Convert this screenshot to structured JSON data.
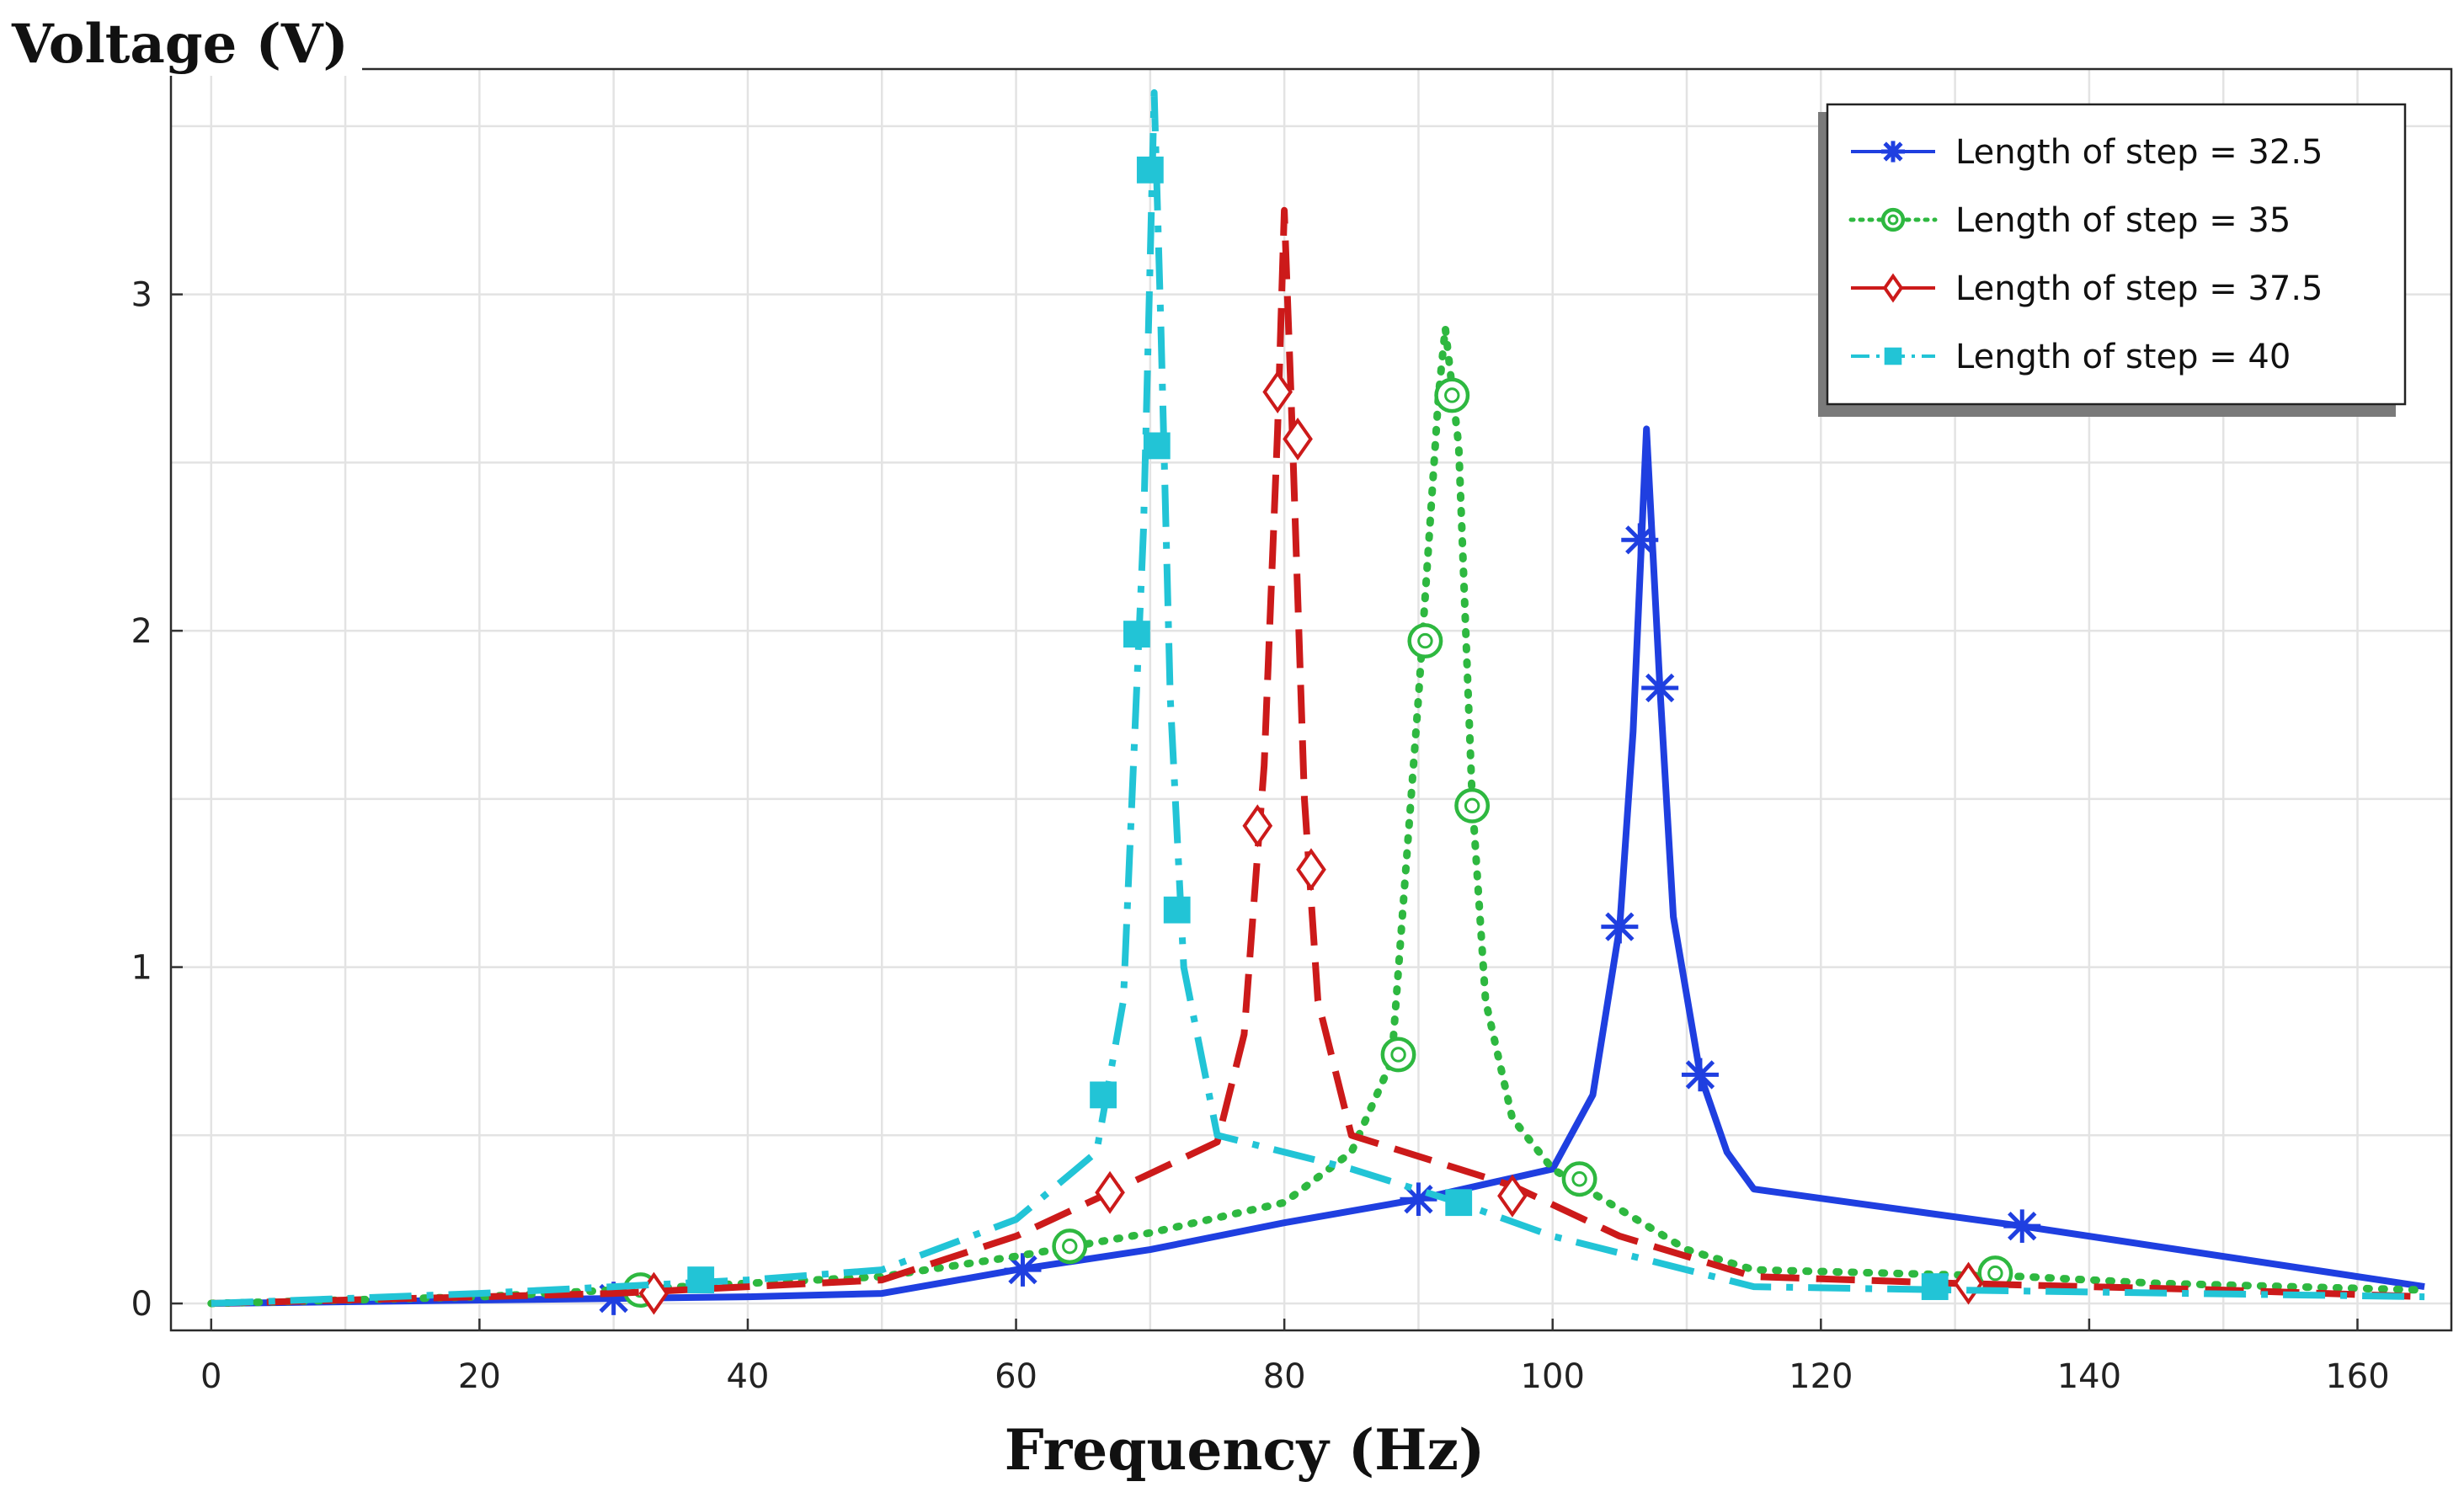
{
  "chart_data": {
    "type": "line",
    "title": "",
    "xlabel": "Frequency (Hz)",
    "ylabel": "Voltage (V)",
    "xlim": [
      -3,
      167
    ],
    "ylim": [
      -0.08,
      3.67
    ],
    "xticks": [
      0,
      20,
      40,
      60,
      80,
      100,
      120,
      140,
      160
    ],
    "yticks": [
      0,
      1,
      2,
      3
    ],
    "xtick_labels": [
      "0",
      "20",
      "40",
      "60",
      "80",
      "100",
      "120",
      "140",
      "160"
    ],
    "ytick_labels": [
      "0",
      "1",
      "2",
      "3"
    ],
    "grid": true,
    "legend_position": "top-right",
    "series": [
      {
        "name": "Length of step = 32.5",
        "color": "#1f3fe0",
        "style": "solid",
        "marker": "asterisk",
        "points": [
          [
            0,
            0
          ],
          [
            10,
            0.005
          ],
          [
            20,
            0.01
          ],
          [
            30,
            0.015
          ],
          [
            40,
            0.02
          ],
          [
            50,
            0.03
          ],
          [
            60,
            0.1
          ],
          [
            70,
            0.16
          ],
          [
            80,
            0.24
          ],
          [
            90,
            0.31
          ],
          [
            100,
            0.4
          ],
          [
            103,
            0.62
          ],
          [
            105,
            1.12
          ],
          [
            106,
            1.7
          ],
          [
            107,
            2.6
          ],
          [
            108,
            1.83
          ],
          [
            109,
            1.15
          ],
          [
            111,
            0.68
          ],
          [
            113,
            0.45
          ],
          [
            115,
            0.34
          ],
          [
            135,
            0.23
          ],
          [
            165,
            0.05
          ]
        ],
        "markers": [
          [
            30,
            0.015
          ],
          [
            60.5,
            0.1
          ],
          [
            90,
            0.31
          ],
          [
            105,
            1.12
          ],
          [
            106.5,
            2.27
          ],
          [
            108,
            1.83
          ],
          [
            111,
            0.68
          ],
          [
            135,
            0.23
          ]
        ]
      },
      {
        "name": "Length of step = 35",
        "color": "#2eb840",
        "style": "dotted",
        "marker": "circle",
        "points": [
          [
            0,
            0
          ],
          [
            10,
            0.01
          ],
          [
            20,
            0.02
          ],
          [
            30,
            0.04
          ],
          [
            40,
            0.06
          ],
          [
            50,
            0.08
          ],
          [
            60,
            0.14
          ],
          [
            70,
            0.21
          ],
          [
            80,
            0.3
          ],
          [
            85,
            0.45
          ],
          [
            88,
            0.72
          ],
          [
            90,
            1.8
          ],
          [
            91.5,
            2.7
          ],
          [
            92,
            2.9
          ],
          [
            93,
            2.55
          ],
          [
            94,
            1.5
          ],
          [
            95,
            0.9
          ],
          [
            97,
            0.55
          ],
          [
            100,
            0.4
          ],
          [
            105,
            0.28
          ],
          [
            110,
            0.16
          ],
          [
            115,
            0.1
          ],
          [
            125,
            0.09
          ],
          [
            135,
            0.08
          ],
          [
            145,
            0.06
          ],
          [
            165,
            0.04
          ]
        ],
        "markers": [
          [
            32,
            0.04
          ],
          [
            64,
            0.17
          ],
          [
            88.5,
            0.74
          ],
          [
            90.5,
            1.97
          ],
          [
            92.5,
            2.7
          ],
          [
            94,
            1.48
          ],
          [
            102,
            0.37
          ],
          [
            133,
            0.09
          ]
        ]
      },
      {
        "name": "Length of step = 37.5",
        "color": "#cc1a1a",
        "style": "dashed",
        "marker": "diamond",
        "points": [
          [
            0,
            0
          ],
          [
            10,
            0.01
          ],
          [
            20,
            0.02
          ],
          [
            30,
            0.03
          ],
          [
            40,
            0.05
          ],
          [
            50,
            0.07
          ],
          [
            60,
            0.2
          ],
          [
            67,
            0.33
          ],
          [
            75,
            0.48
          ],
          [
            77,
            0.8
          ],
          [
            78.5,
            1.6
          ],
          [
            79.5,
            2.6
          ],
          [
            80,
            3.25
          ],
          [
            80.5,
            2.7
          ],
          [
            81.5,
            1.5
          ],
          [
            82.5,
            0.9
          ],
          [
            85,
            0.5
          ],
          [
            97,
            0.35
          ],
          [
            105,
            0.2
          ],
          [
            115,
            0.08
          ],
          [
            130,
            0.06
          ],
          [
            150,
            0.04
          ],
          [
            165,
            0.02
          ]
        ],
        "markers": [
          [
            33,
            0.03
          ],
          [
            67,
            0.33
          ],
          [
            78,
            1.42
          ],
          [
            79.5,
            2.71
          ],
          [
            81,
            2.57
          ],
          [
            82,
            1.29
          ],
          [
            97,
            0.32
          ],
          [
            131,
            0.06
          ]
        ]
      },
      {
        "name": "Length of step = 40",
        "color": "#22c4d6",
        "style": "dashdot",
        "marker": "square",
        "points": [
          [
            0,
            0
          ],
          [
            10,
            0.015
          ],
          [
            20,
            0.03
          ],
          [
            30,
            0.05
          ],
          [
            40,
            0.07
          ],
          [
            50,
            0.1
          ],
          [
            60,
            0.25
          ],
          [
            66,
            0.45
          ],
          [
            68,
            0.9
          ],
          [
            69.5,
            2.3
          ],
          [
            70,
            3.1
          ],
          [
            70.3,
            3.6
          ],
          [
            70.8,
            2.9
          ],
          [
            71.5,
            1.8
          ],
          [
            72.5,
            1.0
          ],
          [
            75,
            0.5
          ],
          [
            85,
            0.4
          ],
          [
            93,
            0.3
          ],
          [
            100,
            0.2
          ],
          [
            115,
            0.05
          ],
          [
            130,
            0.04
          ],
          [
            165,
            0.02
          ]
        ],
        "markers": [
          [
            36.5,
            0.07
          ],
          [
            66.5,
            0.62
          ],
          [
            69,
            1.99
          ],
          [
            70,
            3.37
          ],
          [
            70.5,
            2.55
          ],
          [
            72,
            1.17
          ],
          [
            93,
            0.3
          ],
          [
            128.5,
            0.05
          ]
        ]
      }
    ]
  }
}
